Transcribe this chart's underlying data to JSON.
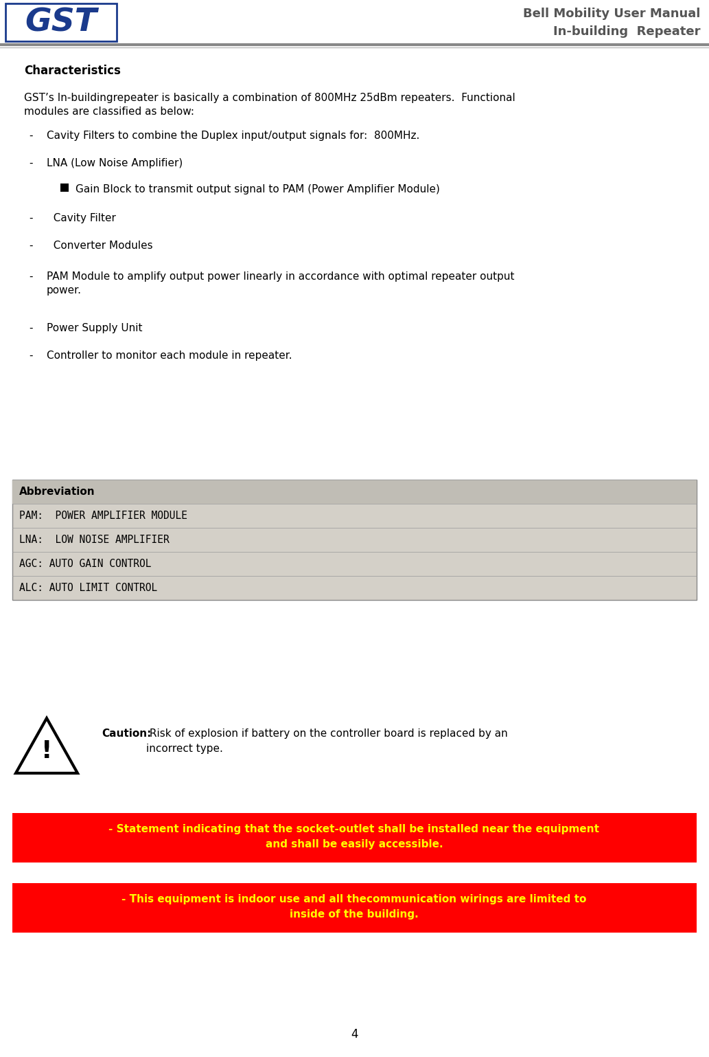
{
  "title_line1": "Bell Mobility User Manual",
  "title_line2": "In-building  Repeater",
  "gst_text": "GST",
  "gst_color": "#1a3a8c",
  "section_title": "Characteristics",
  "para1_line1": "GST’s In-buildingrepeater is basically a combination of 800MHz 25dBm repeaters.  Functional",
  "para1_line2": "modules are classified as below:",
  "bullet_items": [
    {
      "text": "Cavity Filters to combine the Duplex input/output signals for:  800MHz.",
      "sub": false,
      "wrap2": ""
    },
    {
      "text": "LNA (Low Noise Amplifier)",
      "sub": true,
      "wrap2": ""
    },
    {
      "text": "  Cavity Filter",
      "sub": false,
      "wrap2": ""
    },
    {
      "text": "  Converter Modules",
      "sub": false,
      "wrap2": ""
    },
    {
      "text": "PAM Module to amplify output power linearly in accordance with optimal repeater output",
      "sub": false,
      "wrap2": "power."
    },
    {
      "text": "Power Supply Unit",
      "sub": false,
      "wrap2": ""
    },
    {
      "text": "Controller to monitor each module in repeater.",
      "sub": false,
      "wrap2": ""
    }
  ],
  "sub_bullet_text": "Gain Block to transmit output signal to PAM (Power Amplifier Module)",
  "abbrev_title": "Abbreviation",
  "abbrev_bg": "#d4d0c8",
  "abbrev_title_bg": "#c0bdb5",
  "abbrev_items": [
    "PAM:  POWER AMPLIFIER MODULE",
    "LNA:  LOW NOISE AMPLIFIER",
    "AGC: AUTO GAIN CONTROL",
    "ALC: AUTO LIMIT CONTROL"
  ],
  "caution_bold": "Caution:",
  "caution_rest_line1": " Risk of explosion if battery on the controller board is replaced by an",
  "caution_rest_line2": "incorrect type.",
  "statement1_line1": "- Statement indicating that the socket-outlet shall be installed near the equipment",
  "statement1_line2": "and shall be easily accessible.",
  "statement2_line1": "- This equipment is indoor use and all thecommunication wirings are limited to",
  "statement2_line2": "inside of the building.",
  "statement_bg": "#ff0000",
  "statement_text_color": "#ffff00",
  "page_number": "4",
  "bg_color": "#ffffff",
  "text_color": "#000000",
  "header_title_color": "#555555"
}
